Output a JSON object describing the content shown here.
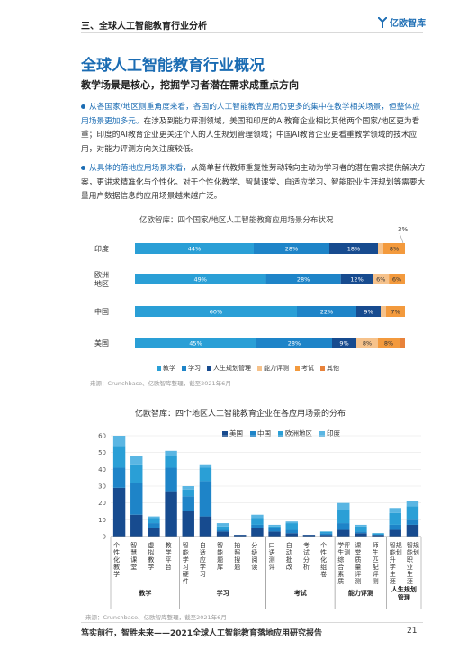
{
  "header": {
    "section_title": "三、全球人工智能教育行业分析",
    "logo_text": "亿欧智库"
  },
  "main_title": "全球人工智能教育行业概况",
  "subtitle": "教学场景是核心，挖掘学习者潜在需求成重点方向",
  "bullets": [
    {
      "highlight": "从各国家/地区侧重角度来看，各国的人工智能教育应用仍更多的集中在教学相关场景，但整体应用场景更加多元。",
      "text": "在涉及到能力评测领域，美国和印度的AI教育企业相比其他两个国家/地区更为看重；印度的AI教育企业更关注个人的人生规划管理领域；中国AI教育企业更看重教学领域的技术应用，对能力评测方向关注度较低。"
    },
    {
      "highlight": "从具体的落地应用场景来看，",
      "text": "从简单替代教师重复性劳动转向主动为学习者的潜在需求提供解决方案，更讲求精准化与个性化。对于个性化教学、智慧课堂、自适应学习、智能职业生涯规划等需要大量用户数据信息的应用场景越来越广泛。"
    }
  ],
  "colors": {
    "accent": "#1b6cb3",
    "c1": "#2a9fd6",
    "c2": "#1e84c8",
    "c3": "#174b8f",
    "c4": "#f6c28b",
    "c5": "#f39a3d",
    "c6": "#e8823a"
  },
  "chart_data": [
    {
      "type": "bar",
      "orientation": "horizontal-stacked-100",
      "title": "亿欧智库：四个国家/地区人工智能教育应用场景分布状况",
      "categories": [
        "印度",
        "欧洲\n地区",
        "中国",
        "美国"
      ],
      "series": [
        {
          "name": "教学",
          "values": [
            44,
            49,
            60,
            45
          ],
          "labels": [
            "44%",
            "49%",
            "60%",
            "45%"
          ]
        },
        {
          "name": "学习",
          "values": [
            28,
            28,
            22,
            28
          ],
          "labels": [
            "28%",
            "28%",
            "22%",
            "28%"
          ]
        },
        {
          "name": "人生规划管理",
          "values": [
            18,
            12,
            9,
            9
          ],
          "labels": [
            "18%",
            "12%",
            "9%",
            "9%"
          ]
        },
        {
          "name": "能力评测",
          "values": [
            2,
            6,
            2,
            8
          ],
          "labels": [
            "",
            "6%",
            "",
            "8%"
          ]
        },
        {
          "name": "考试",
          "values": [
            8,
            6,
            7,
            8
          ],
          "labels": [
            "8%",
            "6%",
            "7%",
            "8%"
          ]
        },
        {
          "name": "其他",
          "values": [
            0,
            0,
            0,
            2
          ],
          "labels": [
            "",
            "",
            "",
            ""
          ]
        }
      ],
      "annotation": "3%",
      "source": "来源：Crunchbase、亿欧智库整理，截至2021年6月"
    },
    {
      "type": "bar",
      "orientation": "vertical-grouped",
      "title": "亿欧智库：四个地区人工智能教育企业在各应用场景的分布",
      "ylim": [
        0,
        60
      ],
      "yticks": [
        "0",
        "10",
        "20",
        "30",
        "40",
        "50",
        "60"
      ],
      "categories": [
        "个性化教学",
        "智慧课堂",
        "虚拟教学",
        "教学平台",
        "智能学习硬件",
        "自适应学习",
        "智能题库",
        "拍照搜题",
        "分级阅读",
        "口语测评",
        "自动批改",
        "考试分析",
        "个性化组卷",
        "学生综合素质评测",
        "课堂质量评测",
        "师生匹配评测",
        "智能升学生涯规划",
        "智能职业生涯规划"
      ],
      "category_labels": [
        "个性化教学",
        "智慧课堂",
        "虚拟教学",
        "教学平台",
        "智能学习硬件",
        "自适应学习",
        "智能题库",
        "拍照搜题",
        "分级阅读",
        "口语测评",
        "自动批改",
        "考试分析",
        "个性化组卷",
        "学生综合素质评测",
        "课堂质量评测",
        "师生匹配评测",
        "智能升学生涯规划",
        "智能职业生涯规划"
      ],
      "groups": [
        {
          "label": "教学",
          "from": 0,
          "to": 3
        },
        {
          "label": "学习",
          "from": 4,
          "to": 8
        },
        {
          "label": "考试",
          "from": 9,
          "to": 12
        },
        {
          "label": "能力评测",
          "from": 13,
          "to": 15
        },
        {
          "label": "人生规划管理",
          "from": 16,
          "to": 17
        }
      ],
      "series": [
        {
          "name": "美国",
          "values": [
            29,
            13,
            5,
            27,
            15,
            12,
            3,
            1,
            5,
            3,
            2,
            1,
            1,
            4,
            2,
            1,
            4,
            7
          ]
        },
        {
          "name": "中国",
          "values": [
            12,
            19,
            3,
            14,
            9,
            21,
            1,
            0,
            2,
            2,
            2,
            0,
            1,
            4,
            1,
            0,
            3,
            3
          ]
        },
        {
          "name": "欧洲地区",
          "values": [
            13,
            11,
            3,
            7,
            4,
            8,
            2,
            0,
            4,
            1,
            4,
            0,
            1,
            8,
            3,
            1,
            7,
            8
          ]
        },
        {
          "name": "印度",
          "values": [
            6,
            5,
            1,
            3,
            2,
            2,
            2,
            0,
            2,
            1,
            1,
            0,
            0,
            4,
            1,
            0,
            3,
            3
          ]
        }
      ],
      "source": "来源：Crunchbase、亿欧智库整理，截至2021年6月"
    }
  ],
  "footer": {
    "text": "笃实前行，智胜未来——2021全球人工智能教育落地应用研究报告",
    "page": "21"
  }
}
